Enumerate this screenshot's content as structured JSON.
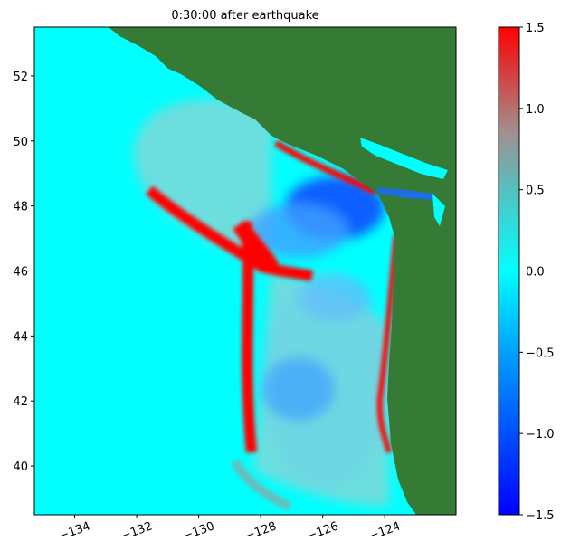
{
  "chart_data": {
    "type": "map",
    "title": "0:30:00 after earthquake",
    "xlim": [
      -135.3,
      -121.7
    ],
    "ylim": [
      38.5,
      53.5
    ],
    "xticks": [
      {
        "value": -134,
        "label": "−134"
      },
      {
        "value": -132,
        "label": "−132"
      },
      {
        "value": -130,
        "label": "−130"
      },
      {
        "value": -128,
        "label": "−128"
      },
      {
        "value": -126,
        "label": "−126"
      },
      {
        "value": -124,
        "label": "−124"
      }
    ],
    "yticks": [
      40,
      42,
      44,
      46,
      48,
      50,
      52
    ],
    "colorbar": {
      "clim": [
        -1.5,
        1.5
      ],
      "ticks": [
        {
          "value": -1.5,
          "label": "−1.5"
        },
        {
          "value": -1.0,
          "label": "−1.0"
        },
        {
          "value": -0.5,
          "label": "−0.5"
        },
        {
          "value": 0,
          "label": "0.0"
        },
        0.5,
        {
          "value": 1.0,
          "label": "1.0"
        },
        1.5
      ],
      "colorscale": [
        [
          -1.5,
          "#0000ff"
        ],
        [
          -0.5,
          "#00a0ff"
        ],
        [
          0,
          "#00ffff"
        ],
        [
          0.5,
          "#55c0c0"
        ],
        [
          0.85,
          "#a09090"
        ],
        [
          1.5,
          "#ff0000"
        ]
      ]
    }
  }
}
